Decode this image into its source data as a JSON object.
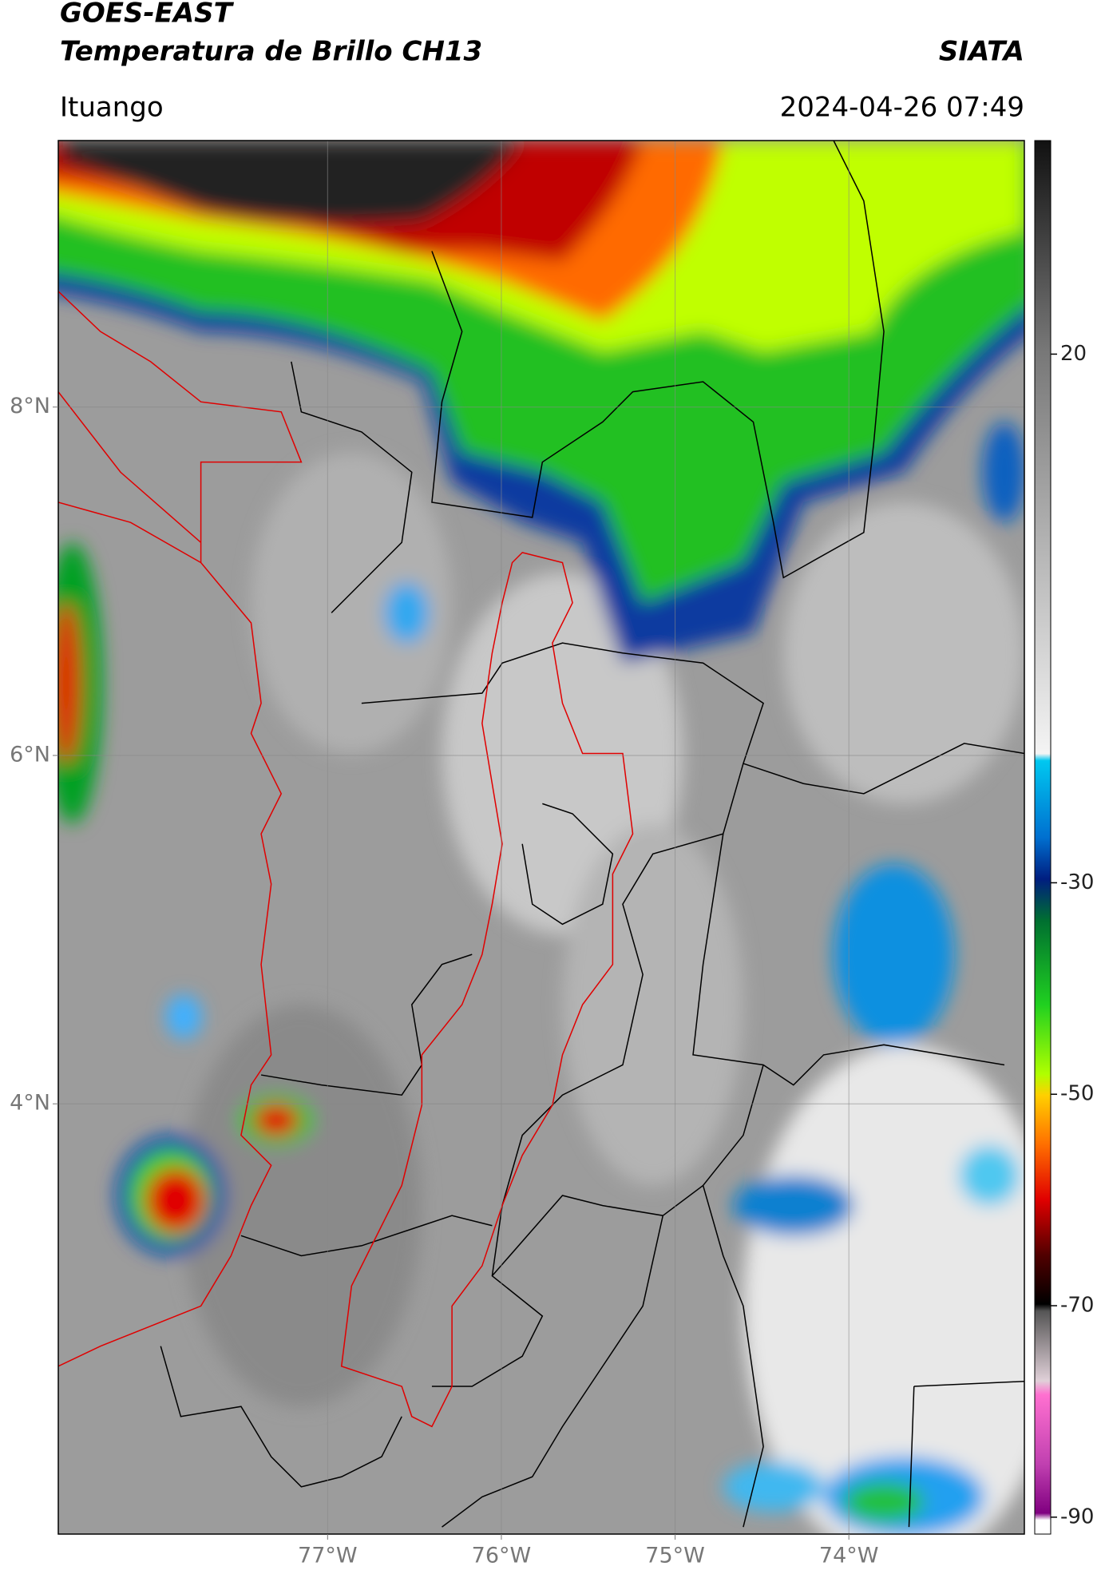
{
  "header": {
    "title": "GOES-EAST",
    "subtitle": "Temperatura de Brillo CH13",
    "agency": "SIATA",
    "location": "Ituango",
    "datetime": "2024-04-26 07:49"
  },
  "map": {
    "xlim": [
      -78.55,
      -72.99
    ],
    "ylim": [
      1.53,
      9.53
    ],
    "xticks": [
      {
        "value": -77,
        "label": "77°W"
      },
      {
        "value": -76,
        "label": "76°W"
      },
      {
        "value": -75,
        "label": "75°W"
      },
      {
        "value": -74,
        "label": "74°W"
      }
    ],
    "yticks": [
      {
        "value": 8,
        "label": "8°N"
      },
      {
        "value": 6,
        "label": "6°N"
      },
      {
        "value": 4,
        "label": "4°N"
      }
    ],
    "grid": true
  },
  "colorbar": {
    "lim": [
      -91.6,
      40.2
    ],
    "ticks": [
      20,
      -30,
      -50,
      -70,
      -90
    ]
  }
}
